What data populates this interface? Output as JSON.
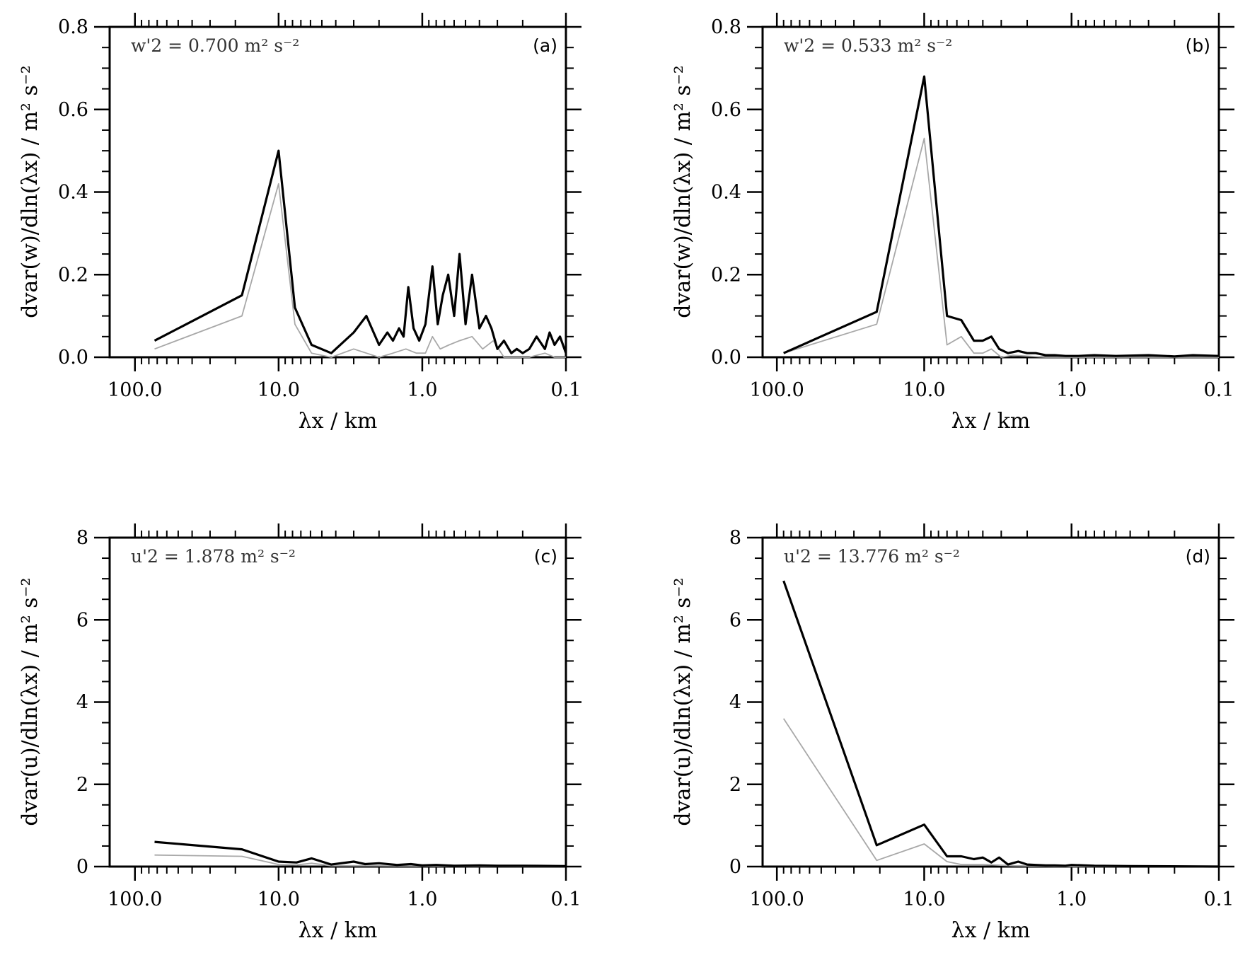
{
  "panels": [
    {
      "id": "a",
      "inset": {
        "text": "w'2 =  0.700 m² s⁻²"
      },
      "tag": "(a)",
      "ylabel": "dvar(w)/dln(λx) / m² s⁻²"
    },
    {
      "id": "b",
      "inset": {
        "text": "w'2 =  0.533 m² s⁻²"
      },
      "tag": "(b)",
      "ylabel": "dvar(w)/dln(λx) / m² s⁻²"
    },
    {
      "id": "c",
      "inset": {
        "text": "u'2 =  1.878 m² s⁻²"
      },
      "tag": "(c)",
      "ylabel": "dvar(u)/dln(λx) / m² s⁻²"
    },
    {
      "id": "d",
      "inset": {
        "text": "u'2 = 13.776 m² s⁻²"
      },
      "tag": "(d)",
      "ylabel": "dvar(u)/dln(λx) / m² s⁻²"
    }
  ],
  "chart_data": [
    {
      "type": "line",
      "panel": "a",
      "xlabel": "λx / km",
      "ylabel": "dvar(w)/dln(λx) / m² s⁻²",
      "xscale": "log",
      "x_reversed": true,
      "xlim": [
        150,
        0.1
      ],
      "ylim": [
        0,
        0.8
      ],
      "x_ticks": [
        "100.0",
        "10.0",
        "1.0",
        "0.1"
      ],
      "y_ticks": [
        "0.0",
        "0.2",
        "0.4",
        "0.6",
        "0.8"
      ],
      "series": [
        {
          "color": "#000000",
          "x": [
            73,
            18,
            10,
            7.7,
            5.9,
            4.3,
            3.0,
            2.45,
            2.0,
            1.75,
            1.6,
            1.45,
            1.35,
            1.25,
            1.15,
            1.05,
            0.95,
            0.85,
            0.78,
            0.72,
            0.66,
            0.6,
            0.55,
            0.5,
            0.45,
            0.4,
            0.36,
            0.33,
            0.3,
            0.27,
            0.24,
            0.22,
            0.2,
            0.18,
            0.16,
            0.14,
            0.13,
            0.12,
            0.11,
            0.1
          ],
          "y": [
            0.04,
            0.15,
            0.5,
            0.12,
            0.03,
            0.01,
            0.06,
            0.1,
            0.03,
            0.06,
            0.04,
            0.07,
            0.05,
            0.17,
            0.07,
            0.04,
            0.08,
            0.22,
            0.08,
            0.15,
            0.2,
            0.1,
            0.25,
            0.08,
            0.2,
            0.07,
            0.1,
            0.07,
            0.02,
            0.04,
            0.01,
            0.02,
            0.01,
            0.02,
            0.05,
            0.02,
            0.06,
            0.03,
            0.05,
            0.01
          ]
        },
        {
          "color": "#a8a8a8",
          "x": [
            73,
            18,
            10,
            7.7,
            5.9,
            4.3,
            3.0,
            2.45,
            2.0,
            1.6,
            1.3,
            1.1,
            0.95,
            0.85,
            0.75,
            0.65,
            0.55,
            0.45,
            0.38,
            0.32,
            0.27,
            0.22,
            0.18,
            0.14,
            0.12,
            0.1
          ],
          "y": [
            0.02,
            0.1,
            0.42,
            0.08,
            0.01,
            0.0,
            0.02,
            0.01,
            0.0,
            0.01,
            0.02,
            0.01,
            0.01,
            0.05,
            0.02,
            0.03,
            0.04,
            0.05,
            0.02,
            0.04,
            0.0,
            0.0,
            0.0,
            0.01,
            0.0,
            0.0
          ]
        }
      ]
    },
    {
      "type": "line",
      "panel": "b",
      "xlabel": "λx / km",
      "ylabel": "dvar(w)/dln(λx) / m² s⁻²",
      "xscale": "log",
      "x_reversed": true,
      "xlim": [
        125,
        0.1
      ],
      "ylim": [
        0,
        0.8
      ],
      "x_ticks": [
        "100.0",
        "10.0",
        "1.0",
        "0.1"
      ],
      "y_ticks": [
        "0.0",
        "0.2",
        "0.4",
        "0.6",
        "0.8"
      ],
      "series": [
        {
          "color": "#000000",
          "x": [
            90,
            21,
            10,
            7.0,
            5.6,
            4.6,
            4.0,
            3.5,
            3.1,
            2.7,
            2.3,
            2.0,
            1.75,
            1.5,
            1.3,
            1.1,
            0.9,
            0.7,
            0.5,
            0.3,
            0.2,
            0.15,
            0.1
          ],
          "y": [
            0.01,
            0.11,
            0.68,
            0.1,
            0.09,
            0.04,
            0.04,
            0.05,
            0.02,
            0.01,
            0.015,
            0.01,
            0.01,
            0.005,
            0.005,
            0.003,
            0.003,
            0.005,
            0.003,
            0.005,
            0.002,
            0.005,
            0.003
          ]
        },
        {
          "color": "#a8a8a8",
          "x": [
            90,
            21,
            10,
            7.0,
            5.6,
            4.6,
            4.0,
            3.5,
            3.0,
            2.5,
            1.5,
            1.0,
            0.1
          ],
          "y": [
            0.01,
            0.08,
            0.53,
            0.03,
            0.05,
            0.01,
            0.01,
            0.02,
            0.0,
            0.005,
            0.0,
            0.0,
            0.0
          ]
        }
      ]
    },
    {
      "type": "line",
      "panel": "c",
      "xlabel": "λx / km",
      "ylabel": "dvar(u)/dln(λx) / m² s⁻²",
      "xscale": "log",
      "x_reversed": true,
      "xlim": [
        150,
        0.1
      ],
      "ylim": [
        0,
        8
      ],
      "x_ticks": [
        "100.0",
        "10.0",
        "1.0",
        "0.1"
      ],
      "y_ticks": [
        "0",
        "2",
        "4",
        "6",
        "8"
      ],
      "series": [
        {
          "color": "#000000",
          "x": [
            73,
            18,
            10,
            7.5,
            5.9,
            4.3,
            3.0,
            2.5,
            2.0,
            1.5,
            1.2,
            1.0,
            0.8,
            0.6,
            0.4,
            0.3,
            0.2,
            0.1
          ],
          "y": [
            0.6,
            0.42,
            0.12,
            0.1,
            0.2,
            0.05,
            0.12,
            0.06,
            0.08,
            0.04,
            0.06,
            0.03,
            0.04,
            0.02,
            0.03,
            0.02,
            0.02,
            0.01
          ]
        },
        {
          "color": "#a8a8a8",
          "x": [
            73,
            18,
            10,
            7.5,
            5.9,
            4.3,
            2.0,
            1.0,
            0.1
          ],
          "y": [
            0.28,
            0.25,
            0.05,
            0.04,
            0.08,
            0.02,
            0.02,
            0.01,
            0.0
          ]
        }
      ]
    },
    {
      "type": "line",
      "panel": "d",
      "xlabel": "λx / km",
      "ylabel": "dvar(u)/dln(λx) / m² s⁻²",
      "xscale": "log",
      "x_reversed": true,
      "xlim": [
        125,
        0.1
      ],
      "ylim": [
        0,
        8
      ],
      "x_ticks": [
        "100.0",
        "10.0",
        "1.0",
        "0.1"
      ],
      "y_ticks": [
        "0",
        "2",
        "4",
        "6",
        "8"
      ],
      "series": [
        {
          "color": "#000000",
          "x": [
            90,
            21,
            10,
            7.0,
            5.6,
            4.6,
            4.0,
            3.5,
            3.1,
            2.7,
            2.3,
            2.0,
            1.75,
            1.5,
            1.3,
            1.1,
            1.0,
            0.7,
            0.4,
            0.1
          ],
          "y": [
            6.95,
            0.52,
            1.02,
            0.25,
            0.25,
            0.18,
            0.22,
            0.1,
            0.22,
            0.05,
            0.12,
            0.05,
            0.04,
            0.03,
            0.03,
            0.02,
            0.04,
            0.02,
            0.01,
            0.0
          ]
        },
        {
          "color": "#a8a8a8",
          "x": [
            90,
            21,
            10,
            7.0,
            5.6,
            4.0,
            2.5,
            1.0,
            0.1
          ],
          "y": [
            3.6,
            0.15,
            0.55,
            0.12,
            0.05,
            0.05,
            0.02,
            0.0,
            0.0
          ]
        }
      ]
    }
  ]
}
